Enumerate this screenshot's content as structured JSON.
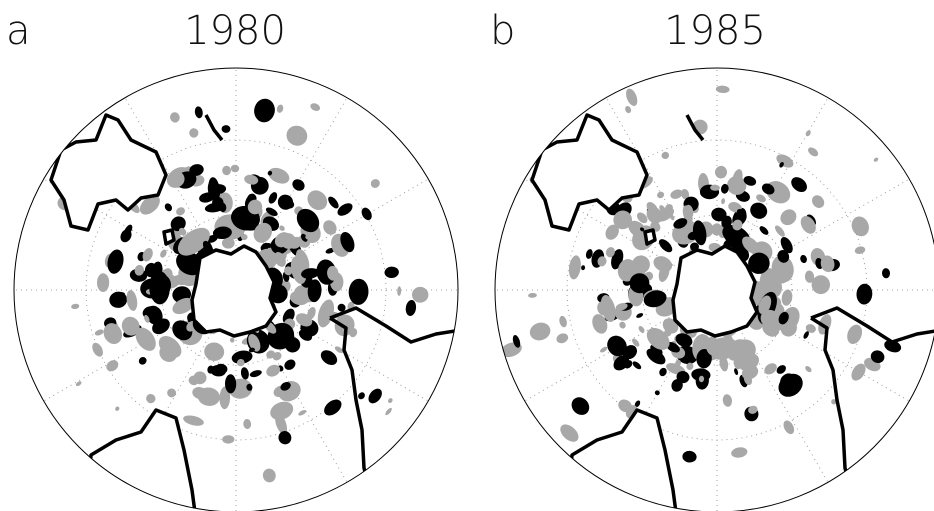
{
  "panels": [
    {
      "letter": "a",
      "year": "1980"
    },
    {
      "letter": "b",
      "year": "1985"
    }
  ]
}
